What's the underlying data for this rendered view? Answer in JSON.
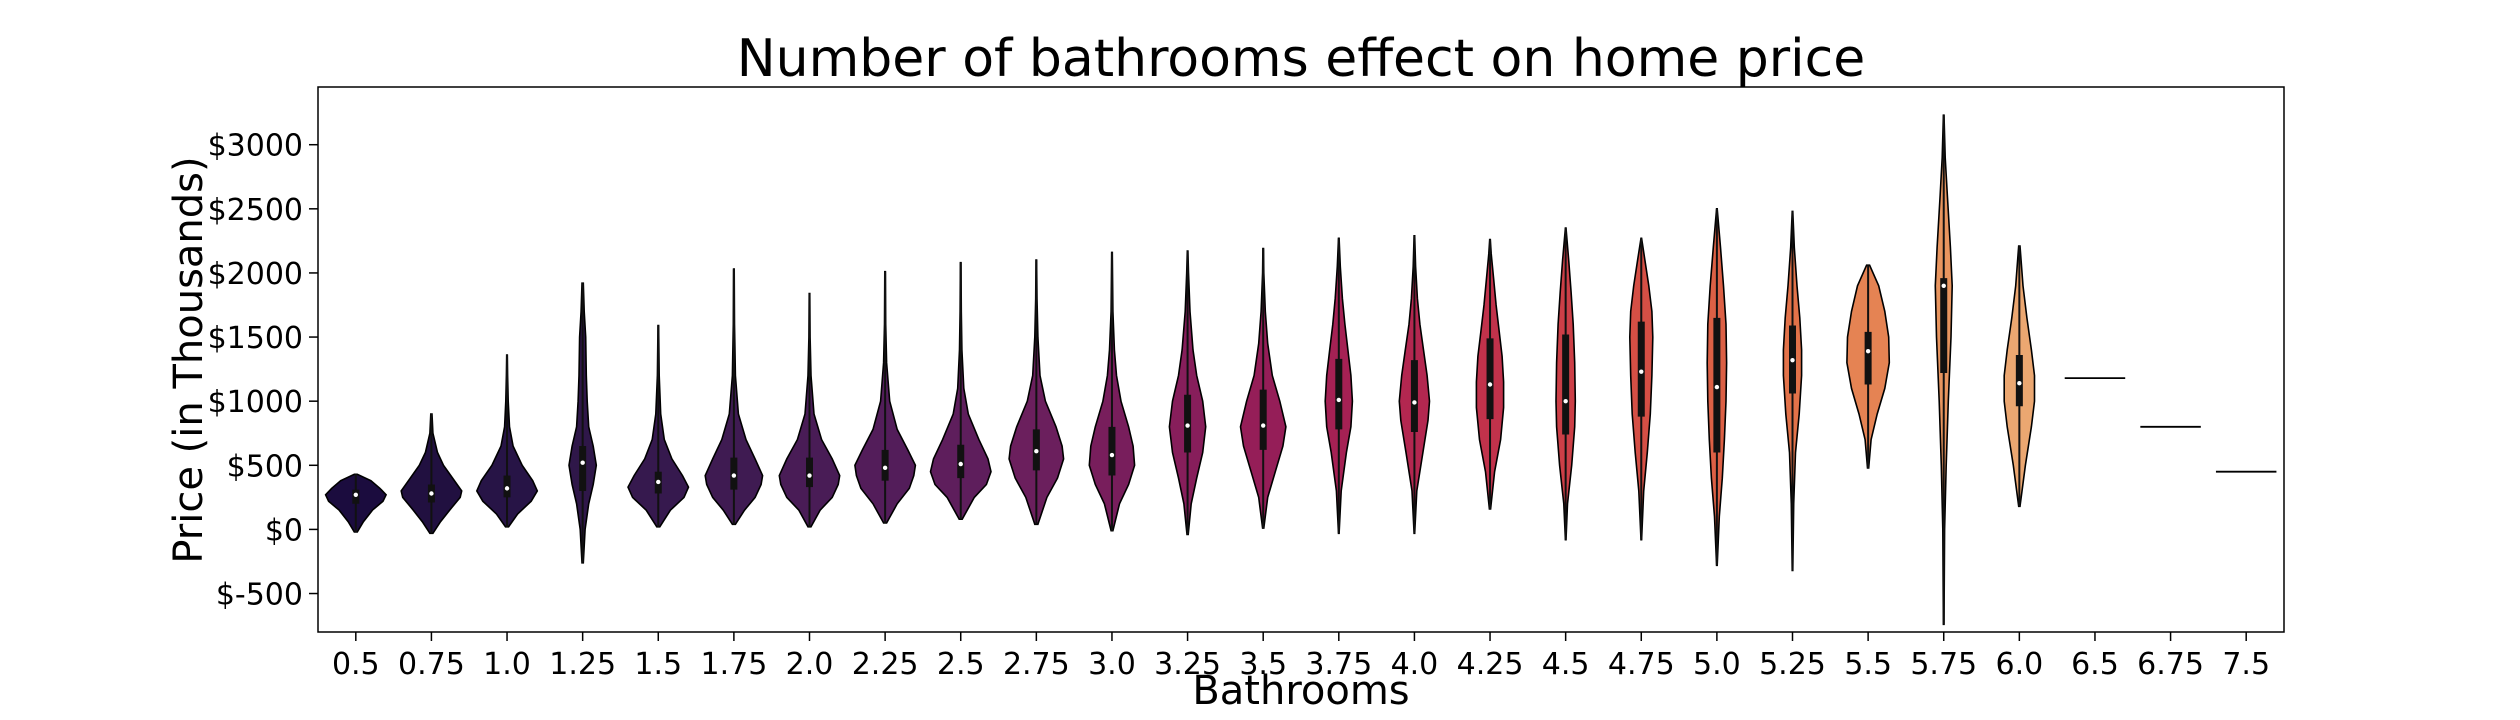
{
  "chart_data": {
    "type": "violin",
    "title": "Number of bathrooms effect on home price",
    "xlabel": "Bathrooms",
    "ylabel": "Price (in Thousands)",
    "ylim": [
      -800,
      3450
    ],
    "yticks": [
      -500,
      0,
      500,
      1000,
      1500,
      2000,
      2500,
      3000
    ],
    "ytick_labels": [
      "$-500",
      "$0",
      "$500",
      "$1000",
      "$1500",
      "$2000",
      "$2500",
      "$3000"
    ],
    "grid": false,
    "categories": [
      "0.5",
      "0.75",
      "1.0",
      "1.25",
      "1.5",
      "1.75",
      "2.0",
      "2.25",
      "2.5",
      "2.75",
      "3.0",
      "3.25",
      "3.5",
      "3.75",
      "4.0",
      "4.25",
      "4.5",
      "4.75",
      "5.0",
      "5.25",
      "5.5",
      "5.75",
      "6.0",
      "6.5",
      "6.75",
      "7.5"
    ],
    "colors": [
      "#1b0c3e",
      "#211040",
      "#271446",
      "#2f1749",
      "#36194e",
      "#3f1b52",
      "#491c56",
      "#531d5a",
      "#5e1e5c",
      "#6b1f5d",
      "#781e5c",
      "#871e5b",
      "#951e58",
      "#a52154",
      "#b32750",
      "#c1324b",
      "#cc3f47",
      "#d54f45",
      "#dc6045",
      "#e27249",
      "#e58353",
      "#e8955f",
      "#eba771",
      "#eeb884",
      "#f0c898",
      "#f2d7ac"
    ],
    "violins": [
      {
        "x": "0.5",
        "min": -20,
        "q1": 200,
        "median": 270,
        "q3": 310,
        "max": 430,
        "density": [
          [
            -20,
            0.05
          ],
          [
            60,
            0.25
          ],
          [
            150,
            0.55
          ],
          [
            220,
            0.9
          ],
          [
            270,
            1.0
          ],
          [
            320,
            0.8
          ],
          [
            380,
            0.5
          ],
          [
            430,
            0.05
          ]
        ]
      },
      {
        "x": "0.75",
        "min": -30,
        "q1": 210,
        "median": 280,
        "q3": 350,
        "max": 900,
        "density": [
          [
            -30,
            0.05
          ],
          [
            60,
            0.3
          ],
          [
            150,
            0.6
          ],
          [
            250,
            0.95
          ],
          [
            300,
            1.0
          ],
          [
            400,
            0.7
          ],
          [
            500,
            0.4
          ],
          [
            600,
            0.2
          ],
          [
            750,
            0.05
          ],
          [
            900,
            0.02
          ]
        ]
      },
      {
        "x": "1.0",
        "min": 20,
        "q1": 250,
        "median": 320,
        "q3": 420,
        "max": 1360,
        "density": [
          [
            20,
            0.05
          ],
          [
            120,
            0.35
          ],
          [
            220,
            0.8
          ],
          [
            300,
            1.0
          ],
          [
            380,
            0.85
          ],
          [
            500,
            0.5
          ],
          [
            650,
            0.2
          ],
          [
            800,
            0.08
          ],
          [
            1000,
            0.04
          ],
          [
            1200,
            0.02
          ],
          [
            1360,
            0.01
          ]
        ]
      },
      {
        "x": "1.25",
        "min": -260,
        "q1": 300,
        "median": 520,
        "q3": 650,
        "max": 1920,
        "density": [
          [
            -260,
            0.02
          ],
          [
            0,
            0.08
          ],
          [
            200,
            0.2
          ],
          [
            350,
            0.35
          ],
          [
            500,
            0.45
          ],
          [
            650,
            0.35
          ],
          [
            800,
            0.2
          ],
          [
            1000,
            0.15
          ],
          [
            1200,
            0.12
          ],
          [
            1500,
            0.1
          ],
          [
            1700,
            0.05
          ],
          [
            1920,
            0.02
          ]
        ]
      },
      {
        "x": "1.5",
        "min": 20,
        "q1": 280,
        "median": 370,
        "q3": 450,
        "max": 1590,
        "density": [
          [
            20,
            0.05
          ],
          [
            150,
            0.4
          ],
          [
            250,
            0.85
          ],
          [
            330,
            1.0
          ],
          [
            420,
            0.8
          ],
          [
            550,
            0.45
          ],
          [
            700,
            0.2
          ],
          [
            900,
            0.08
          ],
          [
            1200,
            0.03
          ],
          [
            1590,
            0.01
          ]
        ]
      },
      {
        "x": "1.75",
        "min": 40,
        "q1": 310,
        "median": 420,
        "q3": 560,
        "max": 2030,
        "density": [
          [
            40,
            0.05
          ],
          [
            150,
            0.35
          ],
          [
            250,
            0.7
          ],
          [
            350,
            0.9
          ],
          [
            420,
            0.95
          ],
          [
            550,
            0.7
          ],
          [
            700,
            0.4
          ],
          [
            900,
            0.15
          ],
          [
            1200,
            0.05
          ],
          [
            1600,
            0.02
          ],
          [
            2030,
            0.01
          ]
        ]
      },
      {
        "x": "2.0",
        "min": 20,
        "q1": 330,
        "median": 420,
        "q3": 560,
        "max": 1840,
        "density": [
          [
            20,
            0.05
          ],
          [
            150,
            0.35
          ],
          [
            250,
            0.75
          ],
          [
            350,
            0.95
          ],
          [
            420,
            1.0
          ],
          [
            550,
            0.75
          ],
          [
            700,
            0.4
          ],
          [
            900,
            0.15
          ],
          [
            1200,
            0.05
          ],
          [
            1500,
            0.02
          ],
          [
            1840,
            0.01
          ]
        ]
      },
      {
        "x": "2.25",
        "min": 50,
        "q1": 380,
        "median": 480,
        "q3": 620,
        "max": 2010,
        "density": [
          [
            50,
            0.05
          ],
          [
            200,
            0.4
          ],
          [
            320,
            0.8
          ],
          [
            420,
            0.95
          ],
          [
            500,
            1.0
          ],
          [
            620,
            0.75
          ],
          [
            780,
            0.4
          ],
          [
            1000,
            0.15
          ],
          [
            1300,
            0.05
          ],
          [
            1600,
            0.02
          ],
          [
            2010,
            0.01
          ]
        ]
      },
      {
        "x": "2.5",
        "min": 80,
        "q1": 400,
        "median": 510,
        "q3": 660,
        "max": 2080,
        "density": [
          [
            80,
            0.05
          ],
          [
            250,
            0.45
          ],
          [
            350,
            0.85
          ],
          [
            450,
            1.0
          ],
          [
            550,
            0.9
          ],
          [
            700,
            0.6
          ],
          [
            900,
            0.25
          ],
          [
            1100,
            0.1
          ],
          [
            1400,
            0.04
          ],
          [
            1700,
            0.02
          ],
          [
            2080,
            0.01
          ]
        ]
      },
      {
        "x": "2.75",
        "min": 40,
        "q1": 460,
        "median": 610,
        "q3": 780,
        "max": 2100,
        "density": [
          [
            40,
            0.05
          ],
          [
            250,
            0.35
          ],
          [
            400,
            0.7
          ],
          [
            550,
            0.9
          ],
          [
            650,
            0.85
          ],
          [
            800,
            0.65
          ],
          [
            1000,
            0.3
          ],
          [
            1200,
            0.12
          ],
          [
            1500,
            0.05
          ],
          [
            1800,
            0.02
          ],
          [
            2100,
            0.01
          ]
        ]
      },
      {
        "x": "3.0",
        "min": -10,
        "q1": 420,
        "median": 580,
        "q3": 800,
        "max": 2160,
        "density": [
          [
            -10,
            0.03
          ],
          [
            200,
            0.25
          ],
          [
            350,
            0.55
          ],
          [
            500,
            0.75
          ],
          [
            650,
            0.7
          ],
          [
            800,
            0.55
          ],
          [
            1000,
            0.3
          ],
          [
            1200,
            0.15
          ],
          [
            1400,
            0.08
          ],
          [
            1700,
            0.03
          ],
          [
            2160,
            0.01
          ]
        ]
      },
      {
        "x": "3.25",
        "min": -40,
        "q1": 600,
        "median": 810,
        "q3": 1050,
        "max": 2170,
        "density": [
          [
            -40,
            0.02
          ],
          [
            200,
            0.12
          ],
          [
            400,
            0.3
          ],
          [
            600,
            0.5
          ],
          [
            800,
            0.6
          ],
          [
            1000,
            0.5
          ],
          [
            1200,
            0.3
          ],
          [
            1400,
            0.18
          ],
          [
            1700,
            0.08
          ],
          [
            2000,
            0.03
          ],
          [
            2170,
            0.01
          ]
        ]
      },
      {
        "x": "3.5",
        "min": 10,
        "q1": 620,
        "median": 810,
        "q3": 1090,
        "max": 2190,
        "density": [
          [
            10,
            0.02
          ],
          [
            250,
            0.15
          ],
          [
            450,
            0.4
          ],
          [
            650,
            0.65
          ],
          [
            800,
            0.75
          ],
          [
            1000,
            0.55
          ],
          [
            1200,
            0.3
          ],
          [
            1450,
            0.15
          ],
          [
            1700,
            0.07
          ],
          [
            2000,
            0.02
          ],
          [
            2190,
            0.01
          ]
        ]
      },
      {
        "x": "3.75",
        "min": -30,
        "q1": 780,
        "median": 1010,
        "q3": 1330,
        "max": 2270,
        "density": [
          [
            -30,
            0.01
          ],
          [
            300,
            0.08
          ],
          [
            600,
            0.25
          ],
          [
            800,
            0.4
          ],
          [
            1000,
            0.45
          ],
          [
            1200,
            0.4
          ],
          [
            1400,
            0.3
          ],
          [
            1600,
            0.2
          ],
          [
            1800,
            0.12
          ],
          [
            2050,
            0.05
          ],
          [
            2270,
            0.01
          ]
        ]
      },
      {
        "x": "4.0",
        "min": -30,
        "q1": 760,
        "median": 990,
        "q3": 1320,
        "max": 2290,
        "density": [
          [
            -30,
            0.01
          ],
          [
            300,
            0.08
          ],
          [
            600,
            0.28
          ],
          [
            850,
            0.45
          ],
          [
            1000,
            0.5
          ],
          [
            1200,
            0.42
          ],
          [
            1400,
            0.3
          ],
          [
            1600,
            0.18
          ],
          [
            1800,
            0.1
          ],
          [
            2050,
            0.04
          ],
          [
            2290,
            0.01
          ]
        ]
      },
      {
        "x": "4.25",
        "min": 160,
        "q1": 860,
        "median": 1130,
        "q3": 1490,
        "max": 2260,
        "density": [
          [
            160,
            0.02
          ],
          [
            450,
            0.15
          ],
          [
            700,
            0.35
          ],
          [
            950,
            0.45
          ],
          [
            1150,
            0.45
          ],
          [
            1350,
            0.4
          ],
          [
            1550,
            0.3
          ],
          [
            1750,
            0.2
          ],
          [
            1950,
            0.12
          ],
          [
            2150,
            0.04
          ],
          [
            2260,
            0.01
          ]
        ]
      },
      {
        "x": "4.5",
        "min": -80,
        "q1": 740,
        "median": 1000,
        "q3": 1520,
        "max": 2350,
        "density": [
          [
            -80,
            0.01
          ],
          [
            200,
            0.06
          ],
          [
            500,
            0.2
          ],
          [
            800,
            0.3
          ],
          [
            1000,
            0.32
          ],
          [
            1300,
            0.3
          ],
          [
            1600,
            0.25
          ],
          [
            1850,
            0.18
          ],
          [
            2100,
            0.1
          ],
          [
            2350,
            0.01
          ]
        ]
      },
      {
        "x": "4.75",
        "min": -80,
        "q1": 880,
        "median": 1230,
        "q3": 1620,
        "max": 2270,
        "density": [
          [
            -80,
            0.01
          ],
          [
            300,
            0.08
          ],
          [
            600,
            0.2
          ],
          [
            900,
            0.3
          ],
          [
            1200,
            0.35
          ],
          [
            1500,
            0.38
          ],
          [
            1700,
            0.35
          ],
          [
            1900,
            0.25
          ],
          [
            2100,
            0.12
          ],
          [
            2270,
            0.01
          ]
        ]
      },
      {
        "x": "5.0",
        "min": -280,
        "q1": 600,
        "median": 1110,
        "q3": 1650,
        "max": 2500,
        "density": [
          [
            -280,
            0.01
          ],
          [
            100,
            0.08
          ],
          [
            400,
            0.18
          ],
          [
            700,
            0.25
          ],
          [
            1000,
            0.3
          ],
          [
            1300,
            0.32
          ],
          [
            1600,
            0.3
          ],
          [
            1900,
            0.22
          ],
          [
            2200,
            0.12
          ],
          [
            2500,
            0.01
          ]
        ]
      },
      {
        "x": "5.25",
        "min": -320,
        "q1": 1060,
        "median": 1320,
        "q3": 1590,
        "max": 2480,
        "density": [
          [
            -320,
            0.01
          ],
          [
            200,
            0.04
          ],
          [
            600,
            0.1
          ],
          [
            900,
            0.22
          ],
          [
            1200,
            0.3
          ],
          [
            1400,
            0.3
          ],
          [
            1650,
            0.24
          ],
          [
            1900,
            0.15
          ],
          [
            2200,
            0.06
          ],
          [
            2480,
            0.01
          ]
        ]
      },
      {
        "x": "5.5",
        "min": 480,
        "q1": 1130,
        "median": 1390,
        "q3": 1540,
        "max": 2060,
        "density": [
          [
            480,
            0.02
          ],
          [
            700,
            0.1
          ],
          [
            900,
            0.3
          ],
          [
            1100,
            0.55
          ],
          [
            1300,
            0.7
          ],
          [
            1500,
            0.68
          ],
          [
            1700,
            0.55
          ],
          [
            1900,
            0.35
          ],
          [
            2060,
            0.05
          ]
        ]
      },
      {
        "x": "5.75",
        "min": -740,
        "q1": 1220,
        "median": 1900,
        "q3": 1960,
        "max": 3230,
        "density": [
          [
            -740,
            0.01
          ],
          [
            0,
            0.03
          ],
          [
            500,
            0.08
          ],
          [
            1000,
            0.15
          ],
          [
            1500,
            0.24
          ],
          [
            1900,
            0.28
          ],
          [
            2200,
            0.22
          ],
          [
            2600,
            0.12
          ],
          [
            2900,
            0.05
          ],
          [
            3230,
            0.01
          ]
        ]
      },
      {
        "x": "6.0",
        "min": 180,
        "q1": 960,
        "median": 1140,
        "q3": 1360,
        "max": 2210,
        "density": [
          [
            180,
            0.02
          ],
          [
            500,
            0.2
          ],
          [
            800,
            0.4
          ],
          [
            1000,
            0.5
          ],
          [
            1200,
            0.5
          ],
          [
            1400,
            0.4
          ],
          [
            1650,
            0.25
          ],
          [
            1900,
            0.12
          ],
          [
            2210,
            0.02
          ]
        ]
      },
      {
        "x": "6.5",
        "min": 1180,
        "q1": 1180,
        "median": 1180,
        "q3": 1180,
        "max": 1180,
        "density": []
      },
      {
        "x": "6.75",
        "min": 800,
        "q1": 800,
        "median": 800,
        "q3": 800,
        "max": 800,
        "density": []
      },
      {
        "x": "7.5",
        "min": 450,
        "q1": 450,
        "median": 450,
        "q3": 450,
        "max": 450,
        "density": []
      }
    ]
  }
}
